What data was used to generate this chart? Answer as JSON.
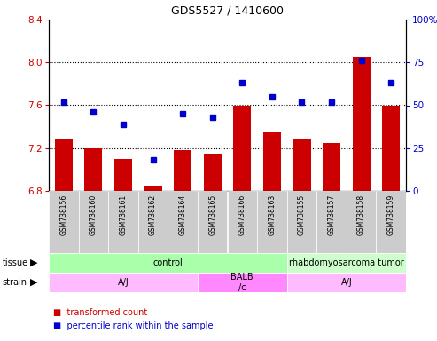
{
  "title": "GDS5527 / 1410600",
  "samples": [
    "GSM738156",
    "GSM738160",
    "GSM738161",
    "GSM738162",
    "GSM738164",
    "GSM738165",
    "GSM738166",
    "GSM738163",
    "GSM738155",
    "GSM738157",
    "GSM738158",
    "GSM738159"
  ],
  "bar_values": [
    7.28,
    7.2,
    7.1,
    6.85,
    7.18,
    7.15,
    7.6,
    7.35,
    7.28,
    7.25,
    8.05,
    7.6
  ],
  "dot_values": [
    52,
    46,
    39,
    18,
    45,
    43,
    63,
    55,
    52,
    52,
    76,
    63
  ],
  "ylim_left": [
    6.8,
    8.4
  ],
  "ylim_right": [
    0,
    100
  ],
  "yticks_left": [
    6.8,
    7.2,
    7.6,
    8.0,
    8.4
  ],
  "yticks_right": [
    0,
    25,
    50,
    75,
    100
  ],
  "bar_color": "#cc0000",
  "dot_color": "#0000cc",
  "tissue_groups": [
    {
      "label": "control",
      "start": 0,
      "end": 8,
      "color": "#aaffaa"
    },
    {
      "label": "rhabdomyosarcoma tumor",
      "start": 8,
      "end": 12,
      "color": "#ccffcc"
    }
  ],
  "strain_groups": [
    {
      "label": "A/J",
      "start": 0,
      "end": 5,
      "color": "#ffbbff"
    },
    {
      "label": "BALB\n/c",
      "start": 5,
      "end": 8,
      "color": "#ff88ff"
    },
    {
      "label": "A/J",
      "start": 8,
      "end": 12,
      "color": "#ffbbff"
    }
  ],
  "tissue_label": "tissue",
  "strain_label": "strain",
  "legend_bar": "transformed count",
  "legend_dot": "percentile rank within the sample",
  "bar_color_left": "#cc0000",
  "dot_color_right": "#0000cc"
}
